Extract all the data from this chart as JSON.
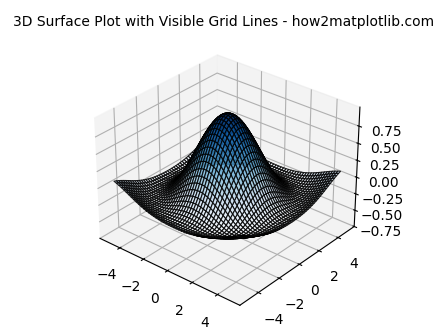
{
  "title": "3D Surface Plot with Visible Grid Lines - how2matplotlib.com",
  "x_range": [
    -5,
    5
  ],
  "y_range": [
    -5,
    5
  ],
  "n_points": 50,
  "colormap": "Blues",
  "surface_alpha": 0.85,
  "linewidth": 0.8,
  "antialiased": true,
  "edge_color": "black",
  "title_fontsize": 10,
  "figsize": [
    4.48,
    3.36
  ],
  "dpi": 100,
  "elev": 30,
  "azim": -50,
  "xticks": [
    -4,
    -2,
    0,
    2,
    4
  ],
  "yticks": [
    -4,
    -2,
    0,
    2,
    4
  ],
  "zticks": [
    -0.75,
    -0.5,
    -0.25,
    0.0,
    0.25,
    0.5,
    0.75
  ]
}
